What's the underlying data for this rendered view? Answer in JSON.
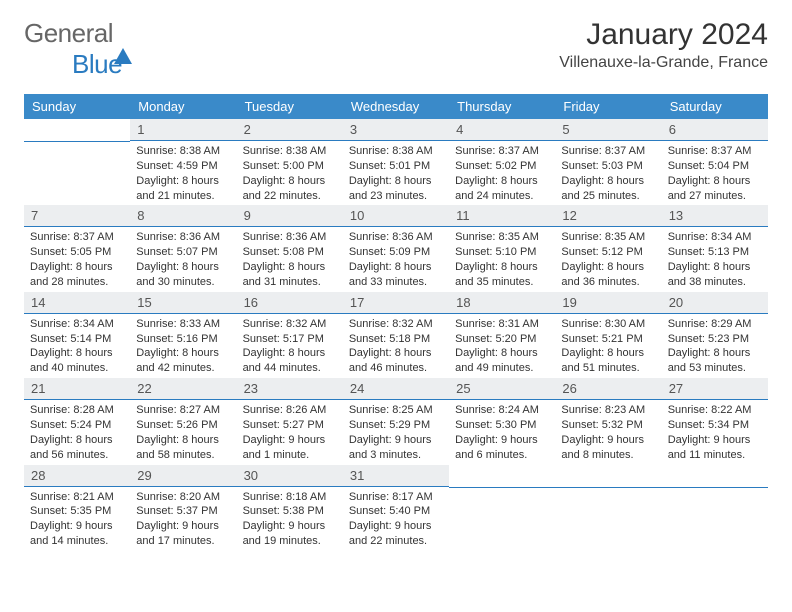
{
  "logo": {
    "word1": "General",
    "word2": "Blue"
  },
  "title": "January 2024",
  "location": "Villenauxe-la-Grande, France",
  "colors": {
    "header_bg": "#3a8ac9",
    "daynum_bg": "#eceef0",
    "rule": "#2a7bc0",
    "logo_blue": "#2a7bc0"
  },
  "weekdays": [
    "Sunday",
    "Monday",
    "Tuesday",
    "Wednesday",
    "Thursday",
    "Friday",
    "Saturday"
  ],
  "weeks": [
    [
      null,
      {
        "n": "1",
        "sunrise": "8:38 AM",
        "sunset": "4:59 PM",
        "dl1": "Daylight: 8 hours",
        "dl2": "and 21 minutes."
      },
      {
        "n": "2",
        "sunrise": "8:38 AM",
        "sunset": "5:00 PM",
        "dl1": "Daylight: 8 hours",
        "dl2": "and 22 minutes."
      },
      {
        "n": "3",
        "sunrise": "8:38 AM",
        "sunset": "5:01 PM",
        "dl1": "Daylight: 8 hours",
        "dl2": "and 23 minutes."
      },
      {
        "n": "4",
        "sunrise": "8:37 AM",
        "sunset": "5:02 PM",
        "dl1": "Daylight: 8 hours",
        "dl2": "and 24 minutes."
      },
      {
        "n": "5",
        "sunrise": "8:37 AM",
        "sunset": "5:03 PM",
        "dl1": "Daylight: 8 hours",
        "dl2": "and 25 minutes."
      },
      {
        "n": "6",
        "sunrise": "8:37 AM",
        "sunset": "5:04 PM",
        "dl1": "Daylight: 8 hours",
        "dl2": "and 27 minutes."
      }
    ],
    [
      {
        "n": "7",
        "sunrise": "8:37 AM",
        "sunset": "5:05 PM",
        "dl1": "Daylight: 8 hours",
        "dl2": "and 28 minutes."
      },
      {
        "n": "8",
        "sunrise": "8:36 AM",
        "sunset": "5:07 PM",
        "dl1": "Daylight: 8 hours",
        "dl2": "and 30 minutes."
      },
      {
        "n": "9",
        "sunrise": "8:36 AM",
        "sunset": "5:08 PM",
        "dl1": "Daylight: 8 hours",
        "dl2": "and 31 minutes."
      },
      {
        "n": "10",
        "sunrise": "8:36 AM",
        "sunset": "5:09 PM",
        "dl1": "Daylight: 8 hours",
        "dl2": "and 33 minutes."
      },
      {
        "n": "11",
        "sunrise": "8:35 AM",
        "sunset": "5:10 PM",
        "dl1": "Daylight: 8 hours",
        "dl2": "and 35 minutes."
      },
      {
        "n": "12",
        "sunrise": "8:35 AM",
        "sunset": "5:12 PM",
        "dl1": "Daylight: 8 hours",
        "dl2": "and 36 minutes."
      },
      {
        "n": "13",
        "sunrise": "8:34 AM",
        "sunset": "5:13 PM",
        "dl1": "Daylight: 8 hours",
        "dl2": "and 38 minutes."
      }
    ],
    [
      {
        "n": "14",
        "sunrise": "8:34 AM",
        "sunset": "5:14 PM",
        "dl1": "Daylight: 8 hours",
        "dl2": "and 40 minutes."
      },
      {
        "n": "15",
        "sunrise": "8:33 AM",
        "sunset": "5:16 PM",
        "dl1": "Daylight: 8 hours",
        "dl2": "and 42 minutes."
      },
      {
        "n": "16",
        "sunrise": "8:32 AM",
        "sunset": "5:17 PM",
        "dl1": "Daylight: 8 hours",
        "dl2": "and 44 minutes."
      },
      {
        "n": "17",
        "sunrise": "8:32 AM",
        "sunset": "5:18 PM",
        "dl1": "Daylight: 8 hours",
        "dl2": "and 46 minutes."
      },
      {
        "n": "18",
        "sunrise": "8:31 AM",
        "sunset": "5:20 PM",
        "dl1": "Daylight: 8 hours",
        "dl2": "and 49 minutes."
      },
      {
        "n": "19",
        "sunrise": "8:30 AM",
        "sunset": "5:21 PM",
        "dl1": "Daylight: 8 hours",
        "dl2": "and 51 minutes."
      },
      {
        "n": "20",
        "sunrise": "8:29 AM",
        "sunset": "5:23 PM",
        "dl1": "Daylight: 8 hours",
        "dl2": "and 53 minutes."
      }
    ],
    [
      {
        "n": "21",
        "sunrise": "8:28 AM",
        "sunset": "5:24 PM",
        "dl1": "Daylight: 8 hours",
        "dl2": "and 56 minutes."
      },
      {
        "n": "22",
        "sunrise": "8:27 AM",
        "sunset": "5:26 PM",
        "dl1": "Daylight: 8 hours",
        "dl2": "and 58 minutes."
      },
      {
        "n": "23",
        "sunrise": "8:26 AM",
        "sunset": "5:27 PM",
        "dl1": "Daylight: 9 hours",
        "dl2": "and 1 minute."
      },
      {
        "n": "24",
        "sunrise": "8:25 AM",
        "sunset": "5:29 PM",
        "dl1": "Daylight: 9 hours",
        "dl2": "and 3 minutes."
      },
      {
        "n": "25",
        "sunrise": "8:24 AM",
        "sunset": "5:30 PM",
        "dl1": "Daylight: 9 hours",
        "dl2": "and 6 minutes."
      },
      {
        "n": "26",
        "sunrise": "8:23 AM",
        "sunset": "5:32 PM",
        "dl1": "Daylight: 9 hours",
        "dl2": "and 8 minutes."
      },
      {
        "n": "27",
        "sunrise": "8:22 AM",
        "sunset": "5:34 PM",
        "dl1": "Daylight: 9 hours",
        "dl2": "and 11 minutes."
      }
    ],
    [
      {
        "n": "28",
        "sunrise": "8:21 AM",
        "sunset": "5:35 PM",
        "dl1": "Daylight: 9 hours",
        "dl2": "and 14 minutes."
      },
      {
        "n": "29",
        "sunrise": "8:20 AM",
        "sunset": "5:37 PM",
        "dl1": "Daylight: 9 hours",
        "dl2": "and 17 minutes."
      },
      {
        "n": "30",
        "sunrise": "8:18 AM",
        "sunset": "5:38 PM",
        "dl1": "Daylight: 9 hours",
        "dl2": "and 19 minutes."
      },
      {
        "n": "31",
        "sunrise": "8:17 AM",
        "sunset": "5:40 PM",
        "dl1": "Daylight: 9 hours",
        "dl2": "and 22 minutes."
      },
      null,
      null,
      null
    ]
  ],
  "labels": {
    "sunrise_prefix": "Sunrise: ",
    "sunset_prefix": "Sunset: "
  }
}
